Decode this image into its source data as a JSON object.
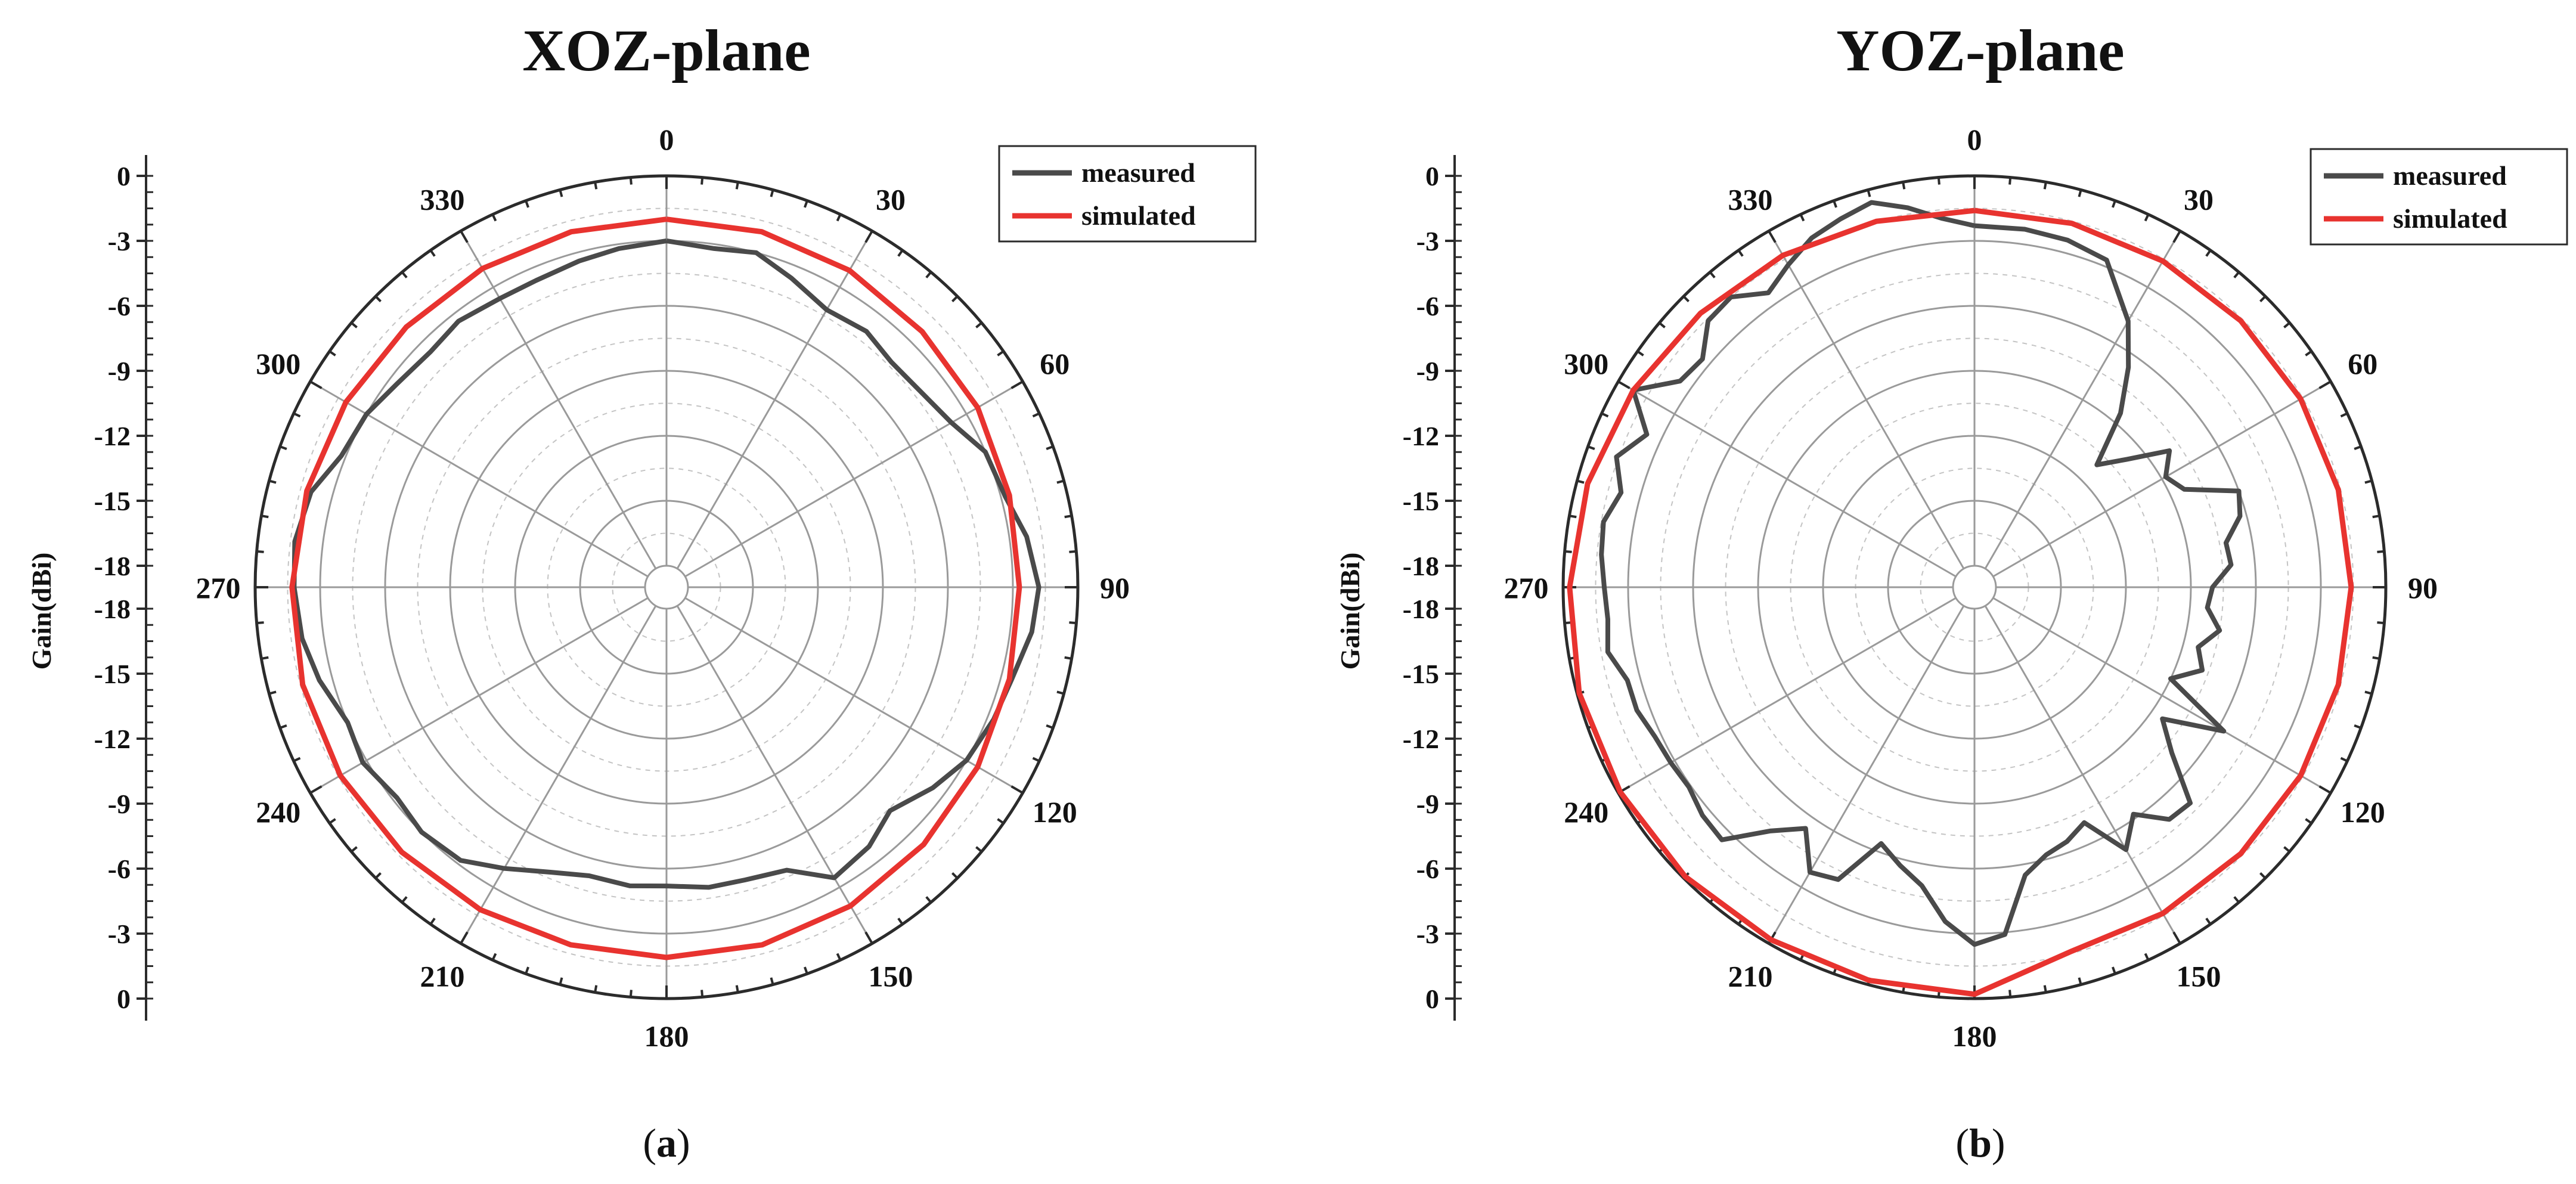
{
  "chart_data": [
    {
      "type": "polar-line",
      "panel_label": "a",
      "title": "XOZ-plane",
      "ylabel": "Gain(dBi)",
      "rlim": [
        -18,
        0
      ],
      "r_ticks_upper": [
        "0",
        "-3",
        "-6",
        "-9",
        "-12",
        "-15",
        "-18"
      ],
      "r_ticks_lower": [
        "-18",
        "-15",
        "-12",
        "-9",
        "-6",
        "-3",
        "0"
      ],
      "angle_labels": [
        "0",
        "30",
        "60",
        "90",
        "120",
        "150",
        "180",
        "210",
        "240",
        "270",
        "300",
        "330"
      ],
      "legend_position": "top-right",
      "series": [
        {
          "name": "measured",
          "color": "#4a4a4a",
          "theta_deg": [
            0,
            8,
            15,
            22,
            30,
            38,
            45,
            52,
            60,
            67,
            75,
            82,
            90,
            97,
            105,
            112,
            120,
            127,
            135,
            142,
            150,
            157,
            165,
            172,
            180,
            187,
            195,
            202,
            210,
            217,
            225,
            232,
            240,
            247,
            255,
            262,
            270,
            277,
            285,
            292,
            300,
            307,
            315,
            322,
            330,
            337,
            345,
            352,
            360
          ],
          "gain_dbi": [
            -3.0,
            -3.2,
            -3.0,
            -3.6,
            -4.2,
            -4.0,
            -4.3,
            -4.2,
            -3.8,
            -3.0,
            -2.8,
            -2.2,
            -1.8,
            -2.0,
            -2.5,
            -2.7,
            -3.0,
            -3.6,
            -4.4,
            -3.8,
            -3.5,
            -4.8,
            -5.0,
            -5.0,
            -5.2,
            -5.1,
            -5.2,
            -4.8,
            -4.0,
            -3.2,
            -3.0,
            -3.2,
            -2.8,
            -3.0,
            -2.4,
            -2.0,
            -1.8,
            -1.7,
            -2.0,
            -2.8,
            -3.0,
            -3.4,
            -3.6,
            -3.4,
            -3.6,
            -3.6,
            -3.4,
            -3.2,
            -3.0
          ]
        },
        {
          "name": "simulated",
          "color": "#e8332f",
          "theta_deg": [
            0,
            15,
            30,
            45,
            60,
            75,
            90,
            105,
            120,
            135,
            150,
            165,
            180,
            195,
            210,
            225,
            240,
            255,
            270,
            285,
            300,
            315,
            330,
            345,
            360
          ],
          "gain_dbi": [
            -2.0,
            -2.0,
            -2.1,
            -2.3,
            -2.4,
            -2.6,
            -2.7,
            -2.6,
            -2.4,
            -2.2,
            -2.0,
            -1.9,
            -1.9,
            -1.9,
            -1.8,
            -1.7,
            -1.6,
            -1.6,
            -1.7,
            -1.8,
            -1.9,
            -2.0,
            -2.0,
            -2.0,
            -2.0
          ]
        }
      ]
    },
    {
      "type": "polar-line",
      "panel_label": "b",
      "title": "YOZ-plane",
      "ylabel": "Gain(dBi)",
      "rlim": [
        -18,
        0
      ],
      "r_ticks_upper": [
        "0",
        "-3",
        "-6",
        "-9",
        "-12",
        "-15",
        "-18"
      ],
      "r_ticks_lower": [
        "-18",
        "-15",
        "-12",
        "-9",
        "-6",
        "-3",
        "0"
      ],
      "angle_labels": [
        "0",
        "30",
        "60",
        "90",
        "120",
        "150",
        "180",
        "210",
        "240",
        "270",
        "300",
        "330"
      ],
      "legend_position": "top-right",
      "series": [
        {
          "name": "measured",
          "color": "#4a4a4a",
          "theta_deg": [
            0,
            8,
            15,
            22,
            30,
            35,
            40,
            45,
            50,
            55,
            60,
            65,
            70,
            75,
            80,
            85,
            90,
            95,
            100,
            105,
            110,
            115,
            120,
            125,
            130,
            135,
            140,
            145,
            150,
            155,
            160,
            165,
            170,
            175,
            180,
            185,
            190,
            195,
            200,
            205,
            210,
            215,
            220,
            225,
            230,
            235,
            240,
            245,
            250,
            255,
            260,
            265,
            270,
            275,
            280,
            285,
            290,
            295,
            300,
            305,
            310,
            315,
            320,
            325,
            330,
            335,
            340,
            345,
            350,
            355,
            360
          ],
          "gain_dbi": [
            -2.3,
            -2.3,
            -2.4,
            -2.7,
            -4.8,
            -6.6,
            -8.5,
            -11.0,
            -9.8,
            -8.0,
            -8.8,
            -8.3,
            -6.0,
            -6.3,
            -7.2,
            -7.1,
            -8.0,
            -8.2,
            -7.5,
            -8.3,
            -7.8,
            -9.0,
            -5.7,
            -8.4,
            -7.1,
            -4.9,
            -5.0,
            -6.2,
            -5.0,
            -7.0,
            -6.5,
            -6.2,
            -5.5,
            -2.9,
            -2.5,
            -3.5,
            -5.0,
            -5.7,
            -6.4,
            -4.1,
            -3.8,
            -5.4,
            -4.3,
            -2.5,
            -2.6,
            -2.9,
            -2.8,
            -2.7,
            -2.4,
            -2.4,
            -1.8,
            -2.0,
            -1.9,
            -1.7,
            -1.6,
            -2.1,
            -1.4,
            -2.3,
            -0.8,
            -2.4,
            -2.6,
            -1.6,
            -1.5,
            -2.4,
            -1.8,
            -1.2,
            -0.9,
            -0.6,
            -1.2,
            -1.9,
            -2.3
          ]
        },
        {
          "name": "simulated",
          "color": "#e8332f",
          "theta_deg": [
            0,
            15,
            30,
            45,
            60,
            75,
            90,
            105,
            120,
            135,
            150,
            165,
            180,
            195,
            210,
            225,
            240,
            255,
            270,
            285,
            300,
            315,
            330,
            345,
            360
          ],
          "gain_dbi": [
            -1.6,
            -1.6,
            -1.6,
            -1.6,
            -1.6,
            -1.6,
            -1.6,
            -1.6,
            -1.6,
            -1.6,
            -1.6,
            -1.6,
            -0.2,
            -0.2,
            -0.2,
            -0.1,
            -0.1,
            -0.1,
            -0.3,
            -0.5,
            -0.8,
            -1.1,
            -1.3,
            -1.5,
            -1.6
          ]
        }
      ]
    }
  ]
}
